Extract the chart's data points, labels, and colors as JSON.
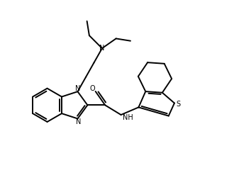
{
  "background_color": "#ffffff",
  "line_color": "#000000",
  "line_width": 1.4,
  "figsize": [
    3.3,
    2.54
  ],
  "dpi": 100,
  "xlim": [
    0,
    10
  ],
  "ylim": [
    0,
    7.7
  ]
}
